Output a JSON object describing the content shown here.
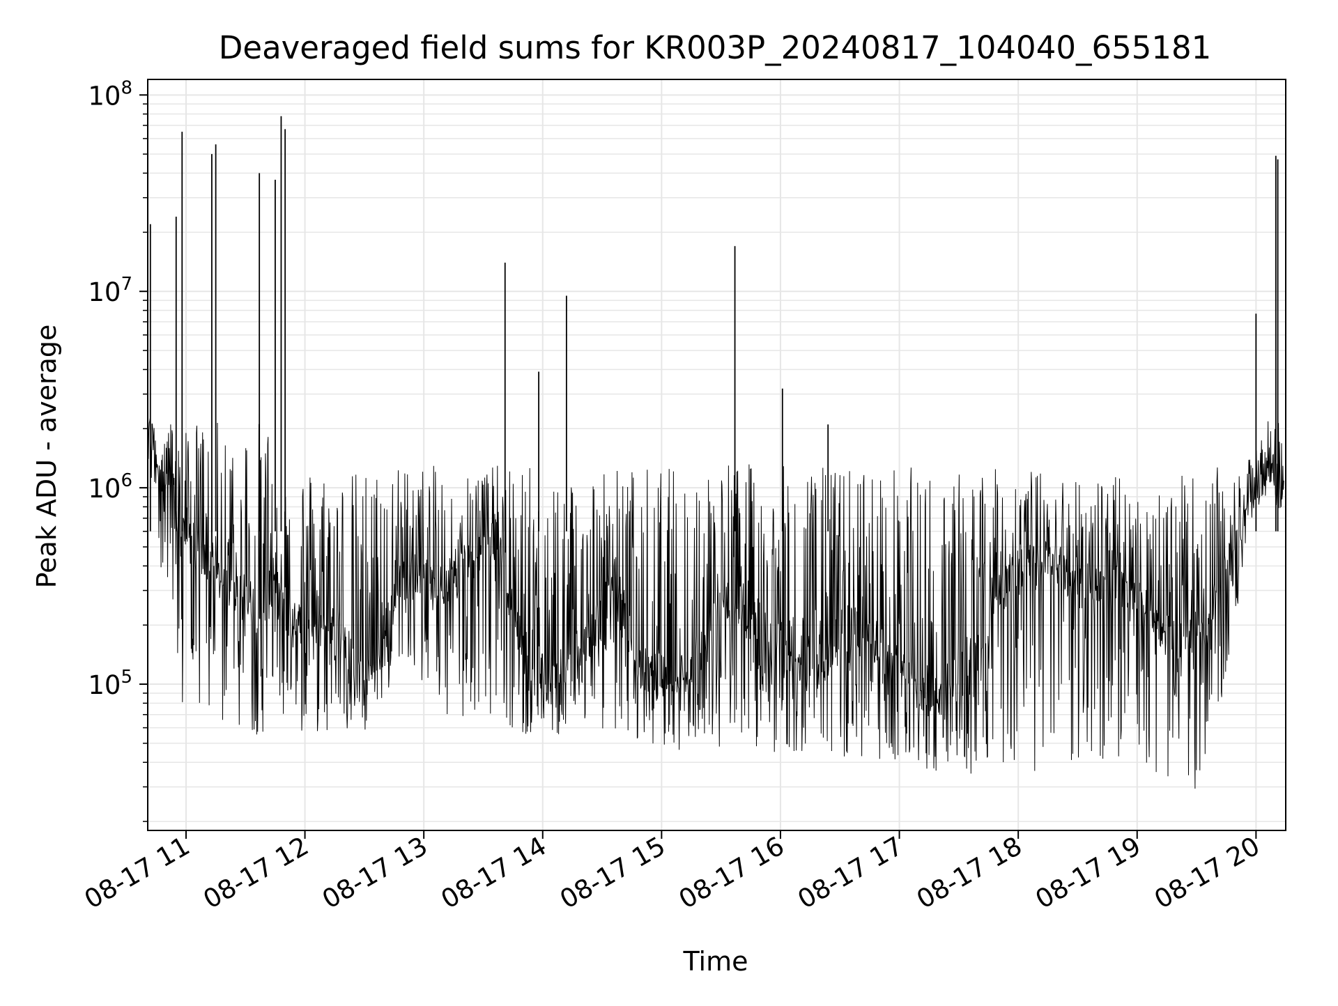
{
  "chart_data": {
    "type": "line",
    "title": "Deaveraged field sums for KR003P_20240817_104040_655181",
    "xlabel": "Time",
    "ylabel": "Peak ADU - average",
    "y_scale": "log",
    "ylim": [
      18000,
      120000000
    ],
    "xlim": [
      "2024-08-17T10:40:40",
      "2024-08-17T20:15:00"
    ],
    "grid": true,
    "legend": "none",
    "line_color": "#000000",
    "grid_color": "#e6e6e6",
    "x_tick_labels": [
      "08-17 11",
      "08-17 12",
      "08-17 13",
      "08-17 14",
      "08-17 15",
      "08-17 16",
      "08-17 17",
      "08-17 18",
      "08-17 19",
      "08-17 20"
    ],
    "x_ticks": [
      "2024-08-17T11:00",
      "2024-08-17T12:00",
      "2024-08-17T13:00",
      "2024-08-17T14:00",
      "2024-08-17T15:00",
      "2024-08-17T16:00",
      "2024-08-17T17:00",
      "2024-08-17T18:00",
      "2024-08-17T19:00",
      "2024-08-17T20:00"
    ],
    "y_ticks": [
      {
        "value": 100000,
        "base": "10",
        "exp": "5"
      },
      {
        "value": 1000000,
        "base": "10",
        "exp": "6"
      },
      {
        "value": 10000000,
        "base": "10",
        "exp": "7"
      },
      {
        "value": 100000000,
        "base": "10",
        "exp": "8"
      }
    ],
    "series": [
      {
        "x": [
          "2024-08-17T10:41",
          "2024-08-17T10:45",
          "2024-08-17T10:52",
          "2024-08-17T10:58",
          "2024-08-17T11:05",
          "2024-08-17T11:15",
          "2024-08-17T11:25",
          "2024-08-17T11:35",
          "2024-08-17T11:45",
          "2024-08-17T11:55",
          "2024-08-17T12:05",
          "2024-08-17T12:20",
          "2024-08-17T12:35",
          "2024-08-17T12:50",
          "2024-08-17T13:05",
          "2024-08-17T13:20",
          "2024-08-17T13:35",
          "2024-08-17T13:50",
          "2024-08-17T14:05",
          "2024-08-17T14:20",
          "2024-08-17T14:35",
          "2024-08-17T14:50",
          "2024-08-17T15:05",
          "2024-08-17T15:20",
          "2024-08-17T15:35",
          "2024-08-17T15:50",
          "2024-08-17T16:05",
          "2024-08-17T16:20",
          "2024-08-17T16:35",
          "2024-08-17T16:50",
          "2024-08-17T17:05",
          "2024-08-17T17:20",
          "2024-08-17T17:35",
          "2024-08-17T17:50",
          "2024-08-17T18:05",
          "2024-08-17T18:20",
          "2024-08-17T18:35",
          "2024-08-17T18:50",
          "2024-08-17T19:05",
          "2024-08-17T19:20",
          "2024-08-17T19:35",
          "2024-08-17T19:50",
          "2024-08-17T20:00",
          "2024-08-17T20:08",
          "2024-08-17T20:14"
        ],
        "y": [
          2000000,
          1500000,
          1000000,
          600000,
          500000,
          350000,
          300000,
          250000,
          300000,
          200000,
          250000,
          150000,
          120000,
          400000,
          300000,
          400000,
          600000,
          150000,
          100000,
          150000,
          300000,
          120000,
          100000,
          150000,
          300000,
          200000,
          150000,
          120000,
          200000,
          150000,
          100000,
          90000,
          120000,
          300000,
          400000,
          400000,
          300000,
          350000,
          250000,
          150000,
          200000,
          600000,
          1000000,
          1200000,
          1000000
        ],
        "y_band_low": [
          1200000,
          700000,
          120000,
          80000,
          70000,
          60000,
          60000,
          55000,
          55000,
          55000,
          55000,
          55000,
          55000,
          150000,
          80000,
          60000,
          70000,
          55000,
          55000,
          55000,
          60000,
          50000,
          45000,
          50000,
          45000,
          45000,
          45000,
          45000,
          42000,
          40000,
          38000,
          35000,
          35000,
          35000,
          35000,
          35000,
          40000,
          40000,
          35000,
          28000,
          30000,
          200000,
          900000,
          800000,
          750000
        ],
        "y_band_high": [
          2500000,
          25000000,
          30000000,
          50000000,
          40000000,
          15000000,
          40000000,
          80000000,
          1300000,
          1300000,
          1300000,
          1200000,
          1300000,
          1300000,
          1300000,
          1300000,
          1300000,
          1300000,
          1300000,
          1300000,
          1300000,
          1300000,
          1300000,
          1300000,
          1400000,
          1300000,
          1300000,
          1300000,
          1300000,
          1300000,
          1300000,
          1250000,
          1250000,
          1250000,
          1250000,
          1200000,
          1200000,
          1150000,
          1150000,
          1150000,
          1200000,
          1400000,
          2000000,
          50000000,
          1500000
        ]
      }
    ],
    "spikes": [
      {
        "x": "2024-08-17T10:42",
        "y": 22000000
      },
      {
        "x": "2024-08-17T10:55",
        "y": 24000000
      },
      {
        "x": "2024-08-17T10:58",
        "y": 65000000
      },
      {
        "x": "2024-08-17T11:13",
        "y": 50000000
      },
      {
        "x": "2024-08-17T11:15",
        "y": 56000000
      },
      {
        "x": "2024-08-17T11:37",
        "y": 40000000
      },
      {
        "x": "2024-08-17T11:45",
        "y": 37000000
      },
      {
        "x": "2024-08-17T11:48",
        "y": 78000000
      },
      {
        "x": "2024-08-17T11:50",
        "y": 67000000
      },
      {
        "x": "2024-08-17T13:41",
        "y": 14000000
      },
      {
        "x": "2024-08-17T13:58",
        "y": 3900000
      },
      {
        "x": "2024-08-17T14:12",
        "y": 9500000
      },
      {
        "x": "2024-08-17T15:37",
        "y": 17000000
      },
      {
        "x": "2024-08-17T16:01",
        "y": 3200000
      },
      {
        "x": "2024-08-17T16:24",
        "y": 2100000
      },
      {
        "x": "2024-08-17T20:00",
        "y": 7700000
      },
      {
        "x": "2024-08-17T20:10",
        "y": 49000000
      },
      {
        "x": "2024-08-17T20:11",
        "y": 47000000
      }
    ]
  }
}
